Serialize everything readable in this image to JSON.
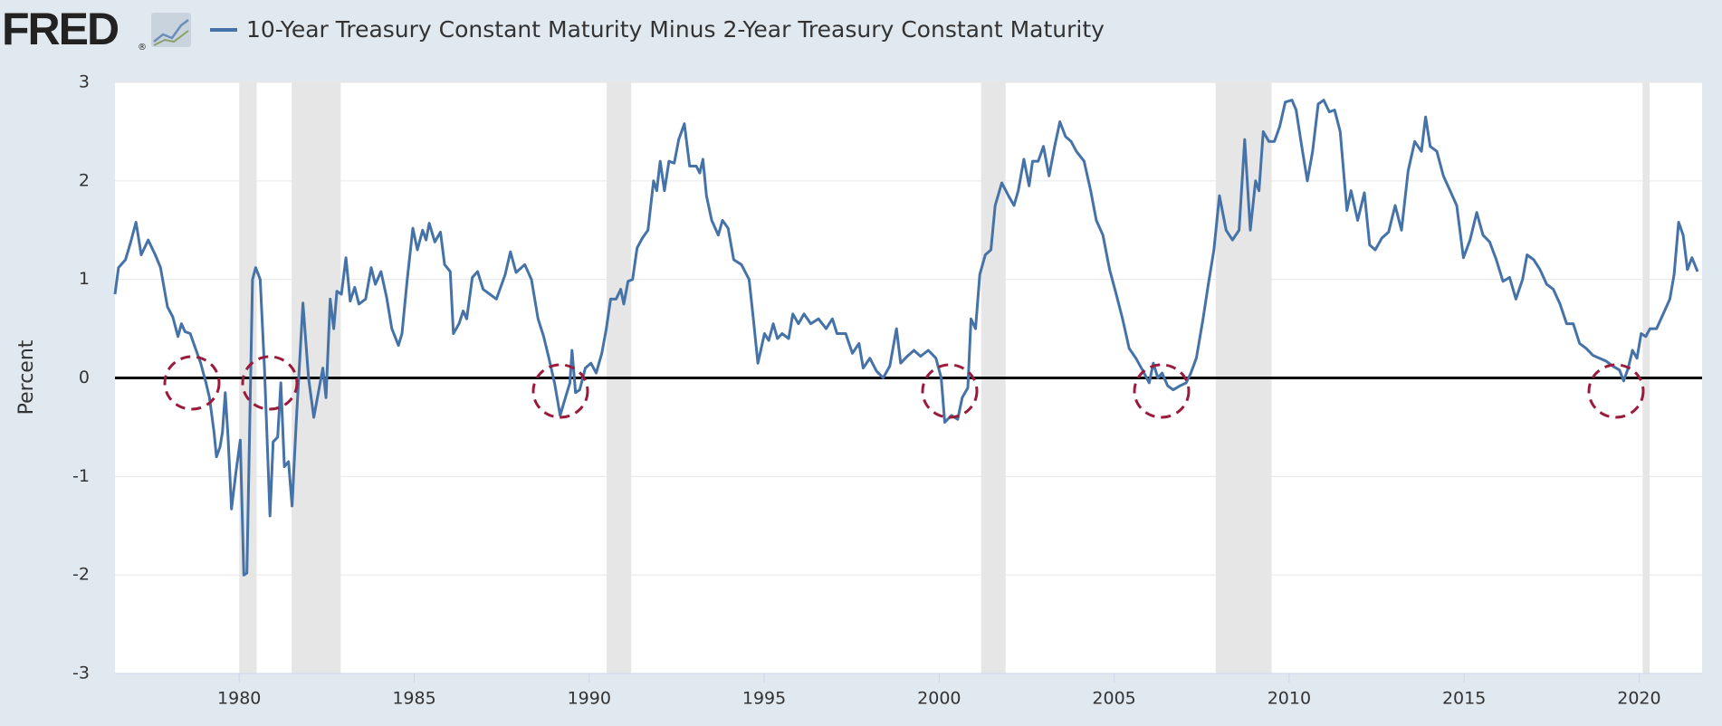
{
  "chart_data": {
    "type": "line",
    "logo": "FRED",
    "logo_mark": "®",
    "y_label": "Percent",
    "series": [
      {
        "name": "10-Year Treasury Constant Maturity Minus 2-Year Treasury Constant Maturity",
        "color": "#4572a7",
        "values": [
          0.85,
          1.12,
          1.2,
          1.38,
          1.58,
          1.25,
          1.4,
          1.25,
          1.12,
          0.72,
          0.62,
          0.42,
          0.55,
          0.47,
          0.45,
          0.3,
          0.15,
          -0.05,
          -0.2,
          -0.55,
          -0.8,
          -0.7,
          -0.55,
          -0.15,
          -0.6,
          -1.33,
          -0.95,
          -0.63,
          -2.0,
          -1.98,
          1.0,
          1.12,
          1.0,
          0.1,
          -1.4,
          -0.65,
          -0.6,
          -0.05,
          -0.9,
          -0.85,
          -1.3,
          -0.45,
          0.76,
          0.0,
          -0.4,
          -0.15,
          0.1,
          -0.2,
          0.8,
          0.5,
          0.88,
          0.85,
          1.22,
          0.78,
          0.92,
          0.75,
          0.8,
          1.12,
          0.95,
          1.08,
          0.82,
          0.5,
          0.33,
          0.45,
          1.0,
          1.52,
          1.3,
          1.5,
          1.4,
          1.57,
          1.38,
          1.48,
          1.15,
          1.08,
          0.45,
          0.55,
          0.68,
          0.6,
          1.02,
          1.08,
          0.9,
          0.85,
          0.8,
          1.05,
          1.28,
          1.07,
          1.15,
          1.0,
          0.6,
          0.42,
          0.2,
          -0.05,
          -0.38,
          -0.2,
          -0.05,
          0.28,
          -0.15,
          -0.12,
          0.1,
          0.15,
          0.05,
          0.25,
          0.5,
          0.8,
          0.8,
          0.9,
          0.75,
          0.98,
          1.0,
          1.32,
          1.42,
          1.5,
          2.0,
          1.9,
          2.2,
          1.9,
          2.2,
          2.18,
          2.42,
          2.58,
          2.15,
          2.15,
          2.08,
          2.22,
          1.85,
          1.6,
          1.45,
          1.6,
          1.52,
          1.2,
          1.15,
          1.0,
          0.6,
          0.15,
          0.45,
          0.38,
          0.55,
          0.4,
          0.45,
          0.4,
          0.65,
          0.55,
          0.65,
          0.55,
          0.6,
          0.5,
          0.6,
          0.45,
          0.45,
          0.25,
          0.35,
          0.1,
          0.2,
          0.07,
          0.0,
          0.12,
          0.5,
          0.15,
          0.22,
          0.28,
          0.22,
          0.28,
          0.2,
          0.0,
          -0.45,
          -0.38,
          -0.42,
          -0.2,
          -0.1,
          0.6,
          0.5,
          1.05,
          1.25,
          1.3,
          1.75,
          1.98,
          1.85,
          1.75,
          1.9,
          2.22,
          1.95,
          2.2,
          2.2,
          2.35,
          2.05,
          2.35,
          2.6,
          2.45,
          2.4,
          2.3,
          2.2,
          1.9,
          1.6,
          1.45,
          1.1,
          0.85,
          0.6,
          0.3,
          0.2,
          0.08,
          -0.05,
          0.15,
          0.0,
          0.05,
          -0.08,
          -0.12,
          -0.08,
          -0.05,
          0.05,
          0.2,
          0.6,
          0.95,
          1.3,
          1.85,
          1.5,
          1.4,
          1.5,
          2.42,
          1.5,
          2.0,
          1.9,
          2.5,
          2.4,
          2.4,
          2.55,
          2.8,
          2.82,
          2.72,
          2.35,
          2.0,
          2.3,
          2.78,
          2.82,
          2.7,
          2.72,
          2.5,
          1.7,
          1.9,
          1.6,
          1.88,
          1.35,
          1.3,
          1.42,
          1.48,
          1.75,
          1.5,
          2.1,
          2.4,
          2.3,
          2.65,
          2.35,
          2.3,
          2.05,
          1.9,
          1.75,
          1.22,
          1.4,
          1.68,
          1.45,
          1.38,
          1.2,
          0.98,
          1.02,
          0.8,
          1.0,
          1.25,
          1.2,
          1.1,
          0.95,
          0.9,
          0.75,
          0.55,
          0.55,
          0.35,
          0.3,
          0.23,
          0.2,
          0.17,
          0.12,
          0.08,
          -0.03,
          0.1,
          0.28,
          0.2,
          0.45,
          0.42,
          0.5,
          0.5,
          0.65,
          0.8,
          1.05,
          1.58,
          1.45,
          1.1,
          1.22,
          1.08
        ]
      }
    ],
    "x": [
      1976.45,
      1976.55,
      1976.75,
      1976.9,
      1977.05,
      1977.2,
      1977.4,
      1977.6,
      1977.75,
      1977.95,
      1978.1,
      1978.25,
      1978.35,
      1978.45,
      1978.6,
      1978.75,
      1978.9,
      1979.05,
      1979.15,
      1979.28,
      1979.35,
      1979.45,
      1979.52,
      1979.6,
      1979.68,
      1979.78,
      1979.91,
      1980.03,
      1980.13,
      1980.22,
      1980.38,
      1980.47,
      1980.6,
      1980.72,
      1980.88,
      1980.97,
      1981.1,
      1981.19,
      1981.29,
      1981.41,
      1981.51,
      1981.63,
      1981.82,
      1981.98,
      1982.13,
      1982.26,
      1982.39,
      1982.48,
      1982.6,
      1982.7,
      1982.79,
      1982.92,
      1983.05,
      1983.17,
      1983.3,
      1983.42,
      1983.61,
      1983.77,
      1983.89,
      1984.05,
      1984.21,
      1984.36,
      1984.55,
      1984.65,
      1984.8,
      1984.96,
      1985.09,
      1985.24,
      1985.34,
      1985.43,
      1985.59,
      1985.75,
      1985.87,
      1986.03,
      1986.12,
      1986.28,
      1986.4,
      1986.5,
      1986.66,
      1986.81,
      1986.97,
      1987.16,
      1987.35,
      1987.6,
      1987.75,
      1987.91,
      1988.16,
      1988.35,
      1988.54,
      1988.7,
      1988.85,
      1989.01,
      1989.17,
      1989.32,
      1989.45,
      1989.51,
      1989.61,
      1989.73,
      1989.89,
      1990.05,
      1990.2,
      1990.36,
      1990.49,
      1990.61,
      1990.77,
      1990.9,
      1990.99,
      1991.11,
      1991.24,
      1991.37,
      1991.52,
      1991.68,
      1991.84,
      1991.93,
      1992.03,
      1992.15,
      1992.28,
      1992.43,
      1992.56,
      1992.72,
      1992.87,
      1993.06,
      1993.16,
      1993.25,
      1993.35,
      1993.5,
      1993.69,
      1993.81,
      1993.97,
      1994.13,
      1994.35,
      1994.57,
      1994.69,
      1994.82,
      1995.01,
      1995.13,
      1995.26,
      1995.38,
      1995.51,
      1995.7,
      1995.82,
      1995.98,
      1996.14,
      1996.33,
      1996.55,
      1996.77,
      1996.95,
      1997.08,
      1997.33,
      1997.52,
      1997.71,
      1997.83,
      1998.02,
      1998.21,
      1998.4,
      1998.59,
      1998.78,
      1998.9,
      1999.09,
      1999.28,
      1999.47,
      1999.69,
      1999.91,
      2000.06,
      2000.16,
      2000.35,
      2000.53,
      2000.66,
      2000.82,
      2000.91,
      2001.04,
      2001.16,
      2001.32,
      2001.48,
      2001.6,
      2001.79,
      2001.98,
      2002.14,
      2002.26,
      2002.42,
      2002.57,
      2002.67,
      2002.83,
      2002.98,
      2003.14,
      2003.3,
      2003.45,
      2003.61,
      2003.77,
      2003.92,
      2004.14,
      2004.33,
      2004.49,
      2004.68,
      2004.87,
      2005.06,
      2005.24,
      2005.43,
      2005.62,
      2005.81,
      2006.0,
      2006.12,
      2006.25,
      2006.37,
      2006.53,
      2006.69,
      2006.88,
      2007.06,
      2007.19,
      2007.35,
      2007.54,
      2007.69,
      2007.85,
      2008.01,
      2008.2,
      2008.38,
      2008.57,
      2008.73,
      2008.89,
      2009.04,
      2009.14,
      2009.26,
      2009.42,
      2009.58,
      2009.73,
      2009.89,
      2010.08,
      2010.2,
      2010.36,
      2010.52,
      2010.67,
      2010.83,
      2010.99,
      2011.15,
      2011.3,
      2011.46,
      2011.65,
      2011.77,
      2011.96,
      2012.15,
      2012.3,
      2012.46,
      2012.65,
      2012.84,
      2013.03,
      2013.21,
      2013.4,
      2013.59,
      2013.78,
      2013.9,
      2014.03,
      2014.22,
      2014.41,
      2014.6,
      2014.79,
      2014.98,
      2015.17,
      2015.36,
      2015.54,
      2015.73,
      2015.92,
      2016.11,
      2016.3,
      2016.48,
      2016.67,
      2016.8,
      2016.99,
      2017.17,
      2017.36,
      2017.55,
      2017.74,
      2017.93,
      2018.12,
      2018.3,
      2018.49,
      2018.68,
      2018.87,
      2019.06,
      2019.25,
      2019.44,
      2019.56,
      2019.69,
      2019.81,
      2019.94,
      2020.06,
      2020.19,
      2020.31,
      2020.5,
      2020.69,
      2020.88,
      2021.0,
      2021.13,
      2021.26,
      2021.38,
      2021.51,
      2021.67
    ],
    "recessions": [
      [
        1980.0,
        1980.5
      ],
      [
        1981.5,
        1982.9
      ],
      [
        1990.5,
        1991.2
      ],
      [
        2001.2,
        2001.9
      ],
      [
        2007.9,
        2009.5
      ],
      [
        2020.1,
        2020.3
      ]
    ],
    "recession_color": "#e6e6e6",
    "xlim": [
      1976.45,
      2021.8
    ],
    "xticks": [
      1980,
      1985,
      1990,
      1995,
      2000,
      2005,
      2010,
      2015,
      2020
    ],
    "ylim": [
      -3,
      3
    ],
    "yticks": [
      -3,
      -2,
      -1,
      0,
      1,
      2,
      3
    ],
    "grid": true
  }
}
